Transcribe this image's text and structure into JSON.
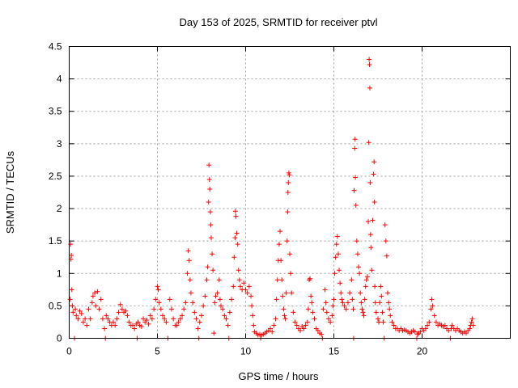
{
  "chart_data": {
    "type": "scatter",
    "title": "Day 153 of 2025, SRMTID for receiver ptvl",
    "xlabel": "GPS time / hours",
    "ylabel": "SRMTID / TECUs",
    "xlim": [
      0,
      25
    ],
    "ylim": [
      0,
      4.5
    ],
    "xticks": [
      0,
      5,
      10,
      15,
      20
    ],
    "xtick_labels": [
      "0",
      "5",
      "10",
      "15",
      "20"
    ],
    "yticks": [
      0,
      0.5,
      1,
      1.5,
      2,
      2.5,
      3,
      3.5,
      4,
      4.5
    ],
    "ytick_labels": [
      "0",
      "0.5",
      "1",
      "1.5",
      "2",
      "2.5",
      "3",
      "3.5",
      "4",
      "4.5"
    ],
    "grid": true,
    "marker": "+",
    "series": [
      {
        "name": "SRMTID",
        "color": "#ff0000",
        "points": [
          [
            0.05,
            0.6
          ],
          [
            0.08,
            1.45
          ],
          [
            0.1,
            1.22
          ],
          [
            0.12,
            1.28
          ],
          [
            0.15,
            0.75
          ],
          [
            0.18,
            0.5
          ],
          [
            0.22,
            0.4
          ],
          [
            0.3,
            0.0
          ],
          [
            0.35,
            0.45
          ],
          [
            0.4,
            0.35
          ],
          [
            0.5,
            0.3
          ],
          [
            0.6,
            0.42
          ],
          [
            0.7,
            0.38
          ],
          [
            0.8,
            0.25
          ],
          [
            0.9,
            0.3
          ],
          [
            1.0,
            0.2
          ],
          [
            1.1,
            0.45
          ],
          [
            1.2,
            0.3
          ],
          [
            1.3,
            0.55
          ],
          [
            1.35,
            0.65
          ],
          [
            1.45,
            0.7
          ],
          [
            1.5,
            0.5
          ],
          [
            1.6,
            0.72
          ],
          [
            1.7,
            0.45
          ],
          [
            1.8,
            0.6
          ],
          [
            1.9,
            0.3
          ],
          [
            2.0,
            0.15
          ],
          [
            2.05,
            0.0
          ],
          [
            2.1,
            0.35
          ],
          [
            2.2,
            0.3
          ],
          [
            2.3,
            0.25
          ],
          [
            2.4,
            0.2
          ],
          [
            2.5,
            0.25
          ],
          [
            2.6,
            0.2
          ],
          [
            2.7,
            0.3
          ],
          [
            2.8,
            0.4
          ],
          [
            2.9,
            0.52
          ],
          [
            3.0,
            0.45
          ],
          [
            3.1,
            0.4
          ],
          [
            3.2,
            0.42
          ],
          [
            3.3,
            0.35
          ],
          [
            3.4,
            0.25
          ],
          [
            3.5,
            0.2
          ],
          [
            3.6,
            0.2
          ],
          [
            3.7,
            0.15
          ],
          [
            3.8,
            0.22
          ],
          [
            3.85,
            0.0
          ],
          [
            3.9,
            0.25
          ],
          [
            4.0,
            0.2
          ],
          [
            4.1,
            0.18
          ],
          [
            4.2,
            0.3
          ],
          [
            4.3,
            0.25
          ],
          [
            4.4,
            0.28
          ],
          [
            4.5,
            0.22
          ],
          [
            4.6,
            0.35
          ],
          [
            4.7,
            0.3
          ],
          [
            4.8,
            0.45
          ],
          [
            4.9,
            0.6
          ],
          [
            5.0,
            0.8
          ],
          [
            5.05,
            0.75
          ],
          [
            5.1,
            0.55
          ],
          [
            5.2,
            0.45
          ],
          [
            5.3,
            0.35
          ],
          [
            5.4,
            0.3
          ],
          [
            5.5,
            0.25
          ],
          [
            5.6,
            0.0
          ],
          [
            5.7,
            0.6
          ],
          [
            5.8,
            0.45
          ],
          [
            5.9,
            0.3
          ],
          [
            6.0,
            0.2
          ],
          [
            6.1,
            0.2
          ],
          [
            6.2,
            0.25
          ],
          [
            6.3,
            0.3
          ],
          [
            6.4,
            0.35
          ],
          [
            6.5,
            0.45
          ],
          [
            6.6,
            0.55
          ],
          [
            6.7,
            1.0
          ],
          [
            6.75,
            1.35
          ],
          [
            6.8,
            1.2
          ],
          [
            6.85,
            0.9
          ],
          [
            6.9,
            0.7
          ],
          [
            7.0,
            0.55
          ],
          [
            7.1,
            0.4
          ],
          [
            7.2,
            0.3
          ],
          [
            7.3,
            0.15
          ],
          [
            7.35,
            0.0
          ],
          [
            7.4,
            0.25
          ],
          [
            7.5,
            0.35
          ],
          [
            7.6,
            0.5
          ],
          [
            7.7,
            0.65
          ],
          [
            7.8,
            0.9
          ],
          [
            7.85,
            1.1
          ],
          [
            7.9,
            2.1
          ],
          [
            7.92,
            2.67
          ],
          [
            7.95,
            2.45
          ],
          [
            7.97,
            2.3
          ],
          [
            8.0,
            1.95
          ],
          [
            8.02,
            1.75
          ],
          [
            8.05,
            1.55
          ],
          [
            8.1,
            1.3
          ],
          [
            8.15,
            1.05
          ],
          [
            8.2,
            0.08
          ],
          [
            8.25,
            0.55
          ],
          [
            8.3,
            0.65
          ],
          [
            8.4,
            0.7
          ],
          [
            8.5,
            0.9
          ],
          [
            8.55,
            0.6
          ],
          [
            8.6,
            0.5
          ],
          [
            8.7,
            0.45
          ],
          [
            8.8,
            0.35
          ],
          [
            8.9,
            0.3
          ],
          [
            9.0,
            0.2
          ],
          [
            9.05,
            0.0
          ],
          [
            9.1,
            0.4
          ],
          [
            9.2,
            0.6
          ],
          [
            9.3,
            0.8
          ],
          [
            9.35,
            1.25
          ],
          [
            9.4,
            1.55
          ],
          [
            9.42,
            1.96
          ],
          [
            9.45,
            1.88
          ],
          [
            9.5,
            1.62
          ],
          [
            9.55,
            1.45
          ],
          [
            9.6,
            1.05
          ],
          [
            9.65,
            0.9
          ],
          [
            9.7,
            0.8
          ],
          [
            9.8,
            0.75
          ],
          [
            9.9,
            0.85
          ],
          [
            10.0,
            0.75
          ],
          [
            10.1,
            0.7
          ],
          [
            10.2,
            0.8
          ],
          [
            10.3,
            0.65
          ],
          [
            10.35,
            0.5
          ],
          [
            10.4,
            0.35
          ],
          [
            10.45,
            0.2
          ],
          [
            10.5,
            0.1
          ],
          [
            10.6,
            0.08
          ],
          [
            10.7,
            0.05
          ],
          [
            10.8,
            0.06
          ],
          [
            10.85,
            0.0
          ],
          [
            10.9,
            0.05
          ],
          [
            11.0,
            0.06
          ],
          [
            11.1,
            0.08
          ],
          [
            11.2,
            0.1
          ],
          [
            11.3,
            0.12
          ],
          [
            11.4,
            0.15
          ],
          [
            11.5,
            0.1
          ],
          [
            11.6,
            0.2
          ],
          [
            11.7,
            0.3
          ],
          [
            11.75,
            0.6
          ],
          [
            11.8,
            0.9
          ],
          [
            11.85,
            1.2
          ],
          [
            11.9,
            1.45
          ],
          [
            11.95,
            1.65
          ],
          [
            12.0,
            1.2
          ],
          [
            12.05,
            0.9
          ],
          [
            12.1,
            0.65
          ],
          [
            12.15,
            0.45
          ],
          [
            12.2,
            0.35
          ],
          [
            12.25,
            0.3
          ],
          [
            12.3,
            0.7
          ],
          [
            12.35,
            1.5
          ],
          [
            12.38,
            1.95
          ],
          [
            12.4,
            2.25
          ],
          [
            12.42,
            2.4
          ],
          [
            12.45,
            2.55
          ],
          [
            12.48,
            2.52
          ],
          [
            12.5,
            1.3
          ],
          [
            12.55,
            1.0
          ],
          [
            12.6,
            0.7
          ],
          [
            12.7,
            0.4
          ],
          [
            12.8,
            0.25
          ],
          [
            12.9,
            0.2
          ],
          [
            13.0,
            0.15
          ],
          [
            13.1,
            0.12
          ],
          [
            13.2,
            0.18
          ],
          [
            13.3,
            0.15
          ],
          [
            13.4,
            0.2
          ],
          [
            13.5,
            0.25
          ],
          [
            13.55,
            0.45
          ],
          [
            13.6,
            0.9
          ],
          [
            13.65,
            0.92
          ],
          [
            13.7,
            0.65
          ],
          [
            13.75,
            0.55
          ],
          [
            13.8,
            0.4
          ],
          [
            13.9,
            0.3
          ],
          [
            14.0,
            0.15
          ],
          [
            14.1,
            0.12
          ],
          [
            14.2,
            0.08
          ],
          [
            14.3,
            0.06
          ],
          [
            14.35,
            0.0
          ],
          [
            14.4,
            0.45
          ],
          [
            14.5,
            0.75
          ],
          [
            14.55,
            0.55
          ],
          [
            14.6,
            0.4
          ],
          [
            14.7,
            0.3
          ],
          [
            14.8,
            0.25
          ],
          [
            14.9,
            0.35
          ],
          [
            14.95,
            0.5
          ],
          [
            15.0,
            0.6
          ],
          [
            15.05,
            1.0
          ],
          [
            15.1,
            1.25
          ],
          [
            15.15,
            1.45
          ],
          [
            15.2,
            1.57
          ],
          [
            15.25,
            1.3
          ],
          [
            15.3,
            1.05
          ],
          [
            15.35,
            0.85
          ],
          [
            15.4,
            0.7
          ],
          [
            15.45,
            0.6
          ],
          [
            15.5,
            0.55
          ],
          [
            15.6,
            0.5
          ],
          [
            15.7,
            0.45
          ],
          [
            15.8,
            0.55
          ],
          [
            15.9,
            0.7
          ],
          [
            16.0,
            0.9
          ],
          [
            16.05,
            0.6
          ],
          [
            16.1,
            0.45
          ],
          [
            16.12,
            0.0
          ],
          [
            16.15,
            2.28
          ],
          [
            16.18,
            2.93
          ],
          [
            16.2,
            3.07
          ],
          [
            16.22,
            2.48
          ],
          [
            16.25,
            2.05
          ],
          [
            16.3,
            1.5
          ],
          [
            16.35,
            1.3
          ],
          [
            16.4,
            1.1
          ],
          [
            16.45,
            1.0
          ],
          [
            16.5,
            0.7
          ],
          [
            16.55,
            0.55
          ],
          [
            16.6,
            0.45
          ],
          [
            16.65,
            0.4
          ],
          [
            16.7,
            0.35
          ],
          [
            16.75,
            0.6
          ],
          [
            16.8,
            0.8
          ],
          [
            16.85,
            0.9
          ],
          [
            16.9,
            0.95
          ],
          [
            16.95,
            1.8
          ],
          [
            16.98,
            3.02
          ],
          [
            17.0,
            4.3
          ],
          [
            17.02,
            4.22
          ],
          [
            17.04,
            3.86
          ],
          [
            17.06,
            2.4
          ],
          [
            17.08,
            1.6
          ],
          [
            17.1,
            1.4
          ],
          [
            17.15,
            1.05
          ],
          [
            17.2,
            1.82
          ],
          [
            17.25,
            2.53
          ],
          [
            17.28,
            2.72
          ],
          [
            17.3,
            2.1
          ],
          [
            17.32,
            0.8
          ],
          [
            17.35,
            0.55
          ],
          [
            17.4,
            0.4
          ],
          [
            17.5,
            0.3
          ],
          [
            17.55,
            0.25
          ],
          [
            17.6,
            0.55
          ],
          [
            17.65,
            0.8
          ],
          [
            17.7,
            0.65
          ],
          [
            17.75,
            0.4
          ],
          [
            17.8,
            0.25
          ],
          [
            17.85,
            0.0
          ],
          [
            17.9,
            1.75
          ],
          [
            17.95,
            1.5
          ],
          [
            18.0,
            1.27
          ],
          [
            18.05,
            0.7
          ],
          [
            18.1,
            0.55
          ],
          [
            18.15,
            0.45
          ],
          [
            18.2,
            0.35
          ],
          [
            18.3,
            0.25
          ],
          [
            18.4,
            0.2
          ],
          [
            18.5,
            0.15
          ],
          [
            18.6,
            0.15
          ],
          [
            18.7,
            0.12
          ],
          [
            18.8,
            0.15
          ],
          [
            18.9,
            0.12
          ],
          [
            19.0,
            0.13
          ],
          [
            19.1,
            0.12
          ],
          [
            19.2,
            0.1
          ],
          [
            19.3,
            0.08
          ],
          [
            19.4,
            0.1
          ],
          [
            19.5,
            0.12
          ],
          [
            19.6,
            0.1
          ],
          [
            19.7,
            0.0
          ],
          [
            19.75,
            0.06
          ],
          [
            19.8,
            0.08
          ],
          [
            19.9,
            0.1
          ],
          [
            20.0,
            0.15
          ],
          [
            20.1,
            0.12
          ],
          [
            20.2,
            0.15
          ],
          [
            20.3,
            0.2
          ],
          [
            20.4,
            0.25
          ],
          [
            20.5,
            0.45
          ],
          [
            20.55,
            0.6
          ],
          [
            20.6,
            0.5
          ],
          [
            20.7,
            0.35
          ],
          [
            20.8,
            0.25
          ],
          [
            20.9,
            0.2
          ],
          [
            21.0,
            0.22
          ],
          [
            21.1,
            0.2
          ],
          [
            21.2,
            0.18
          ],
          [
            21.3,
            0.2
          ],
          [
            21.4,
            0.15
          ],
          [
            21.5,
            0.12
          ],
          [
            21.6,
            0.0
          ],
          [
            21.65,
            0.15
          ],
          [
            21.7,
            0.2
          ],
          [
            21.8,
            0.15
          ],
          [
            21.9,
            0.12
          ],
          [
            22.0,
            0.15
          ],
          [
            22.1,
            0.12
          ],
          [
            22.2,
            0.1
          ],
          [
            22.3,
            0.08
          ],
          [
            22.4,
            0.1
          ],
          [
            22.5,
            0.08
          ],
          [
            22.6,
            0.12
          ],
          [
            22.7,
            0.15
          ],
          [
            22.75,
            0.2
          ],
          [
            22.8,
            0.25
          ],
          [
            22.85,
            0.3
          ],
          [
            22.9,
            0.2
          ]
        ]
      }
    ]
  }
}
